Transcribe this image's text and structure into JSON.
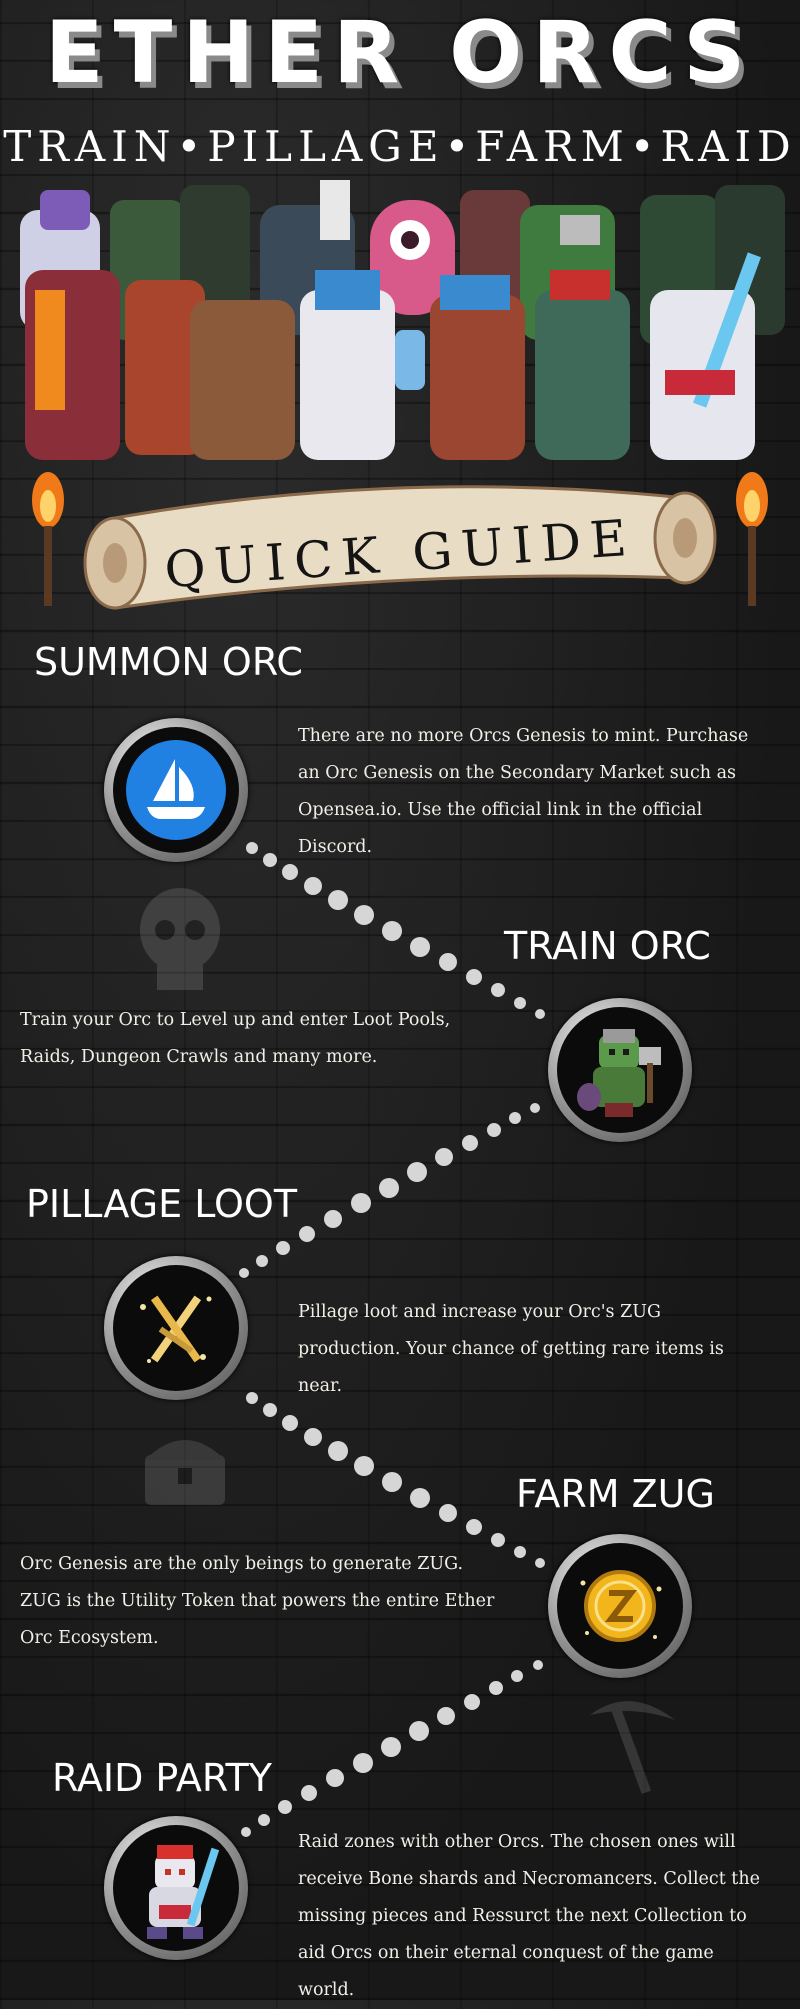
{
  "header": {
    "title": "ETHER ORCS",
    "tagline": "TRAIN•PILLAGE•FARM•RAID"
  },
  "banner": {
    "label": "QUICK GUIDE"
  },
  "sections": [
    {
      "heading": "SUMMON ORC",
      "icon": "opensea-icon",
      "body": "There are no more Orcs Genesis to mint.  Purchase an Orc Genesis on the Secondary Market such as Opensea.io.  Use the official link in the official Discord."
    },
    {
      "heading": "TRAIN ORC",
      "icon": "orc-warrior-icon",
      "body": "Train your Orc to Level up and enter Loot Pools, Raids, Dungeon Crawls and many more."
    },
    {
      "heading": "PILLAGE LOOT",
      "icon": "crossed-swords-icon",
      "body": "Pillage loot and increase your Orc's ZUG production. Your chance of getting rare items is near."
    },
    {
      "heading": "FARM ZUG",
      "icon": "zug-coin-icon",
      "body": "Orc Genesis are the only beings to generate ZUG.  ZUG is the Utility Token that powers the entire Ether Orc Ecosystem."
    },
    {
      "heading": "RAID PARTY",
      "icon": "raid-orc-icon",
      "body": "Raid zones with other Orcs.  The chosen ones will receive Bone shards and Necromancers. Collect the missing pieces and Ressurct the next Collection to aid Orcs on their eternal conquest of the game world."
    }
  ],
  "colors": {
    "background": "#1c1c1c",
    "text": "#f2efe8",
    "opensea_blue": "#2081e2",
    "coin_gold": "#f2b51c",
    "scroll_paper": "#e9dcc4"
  }
}
